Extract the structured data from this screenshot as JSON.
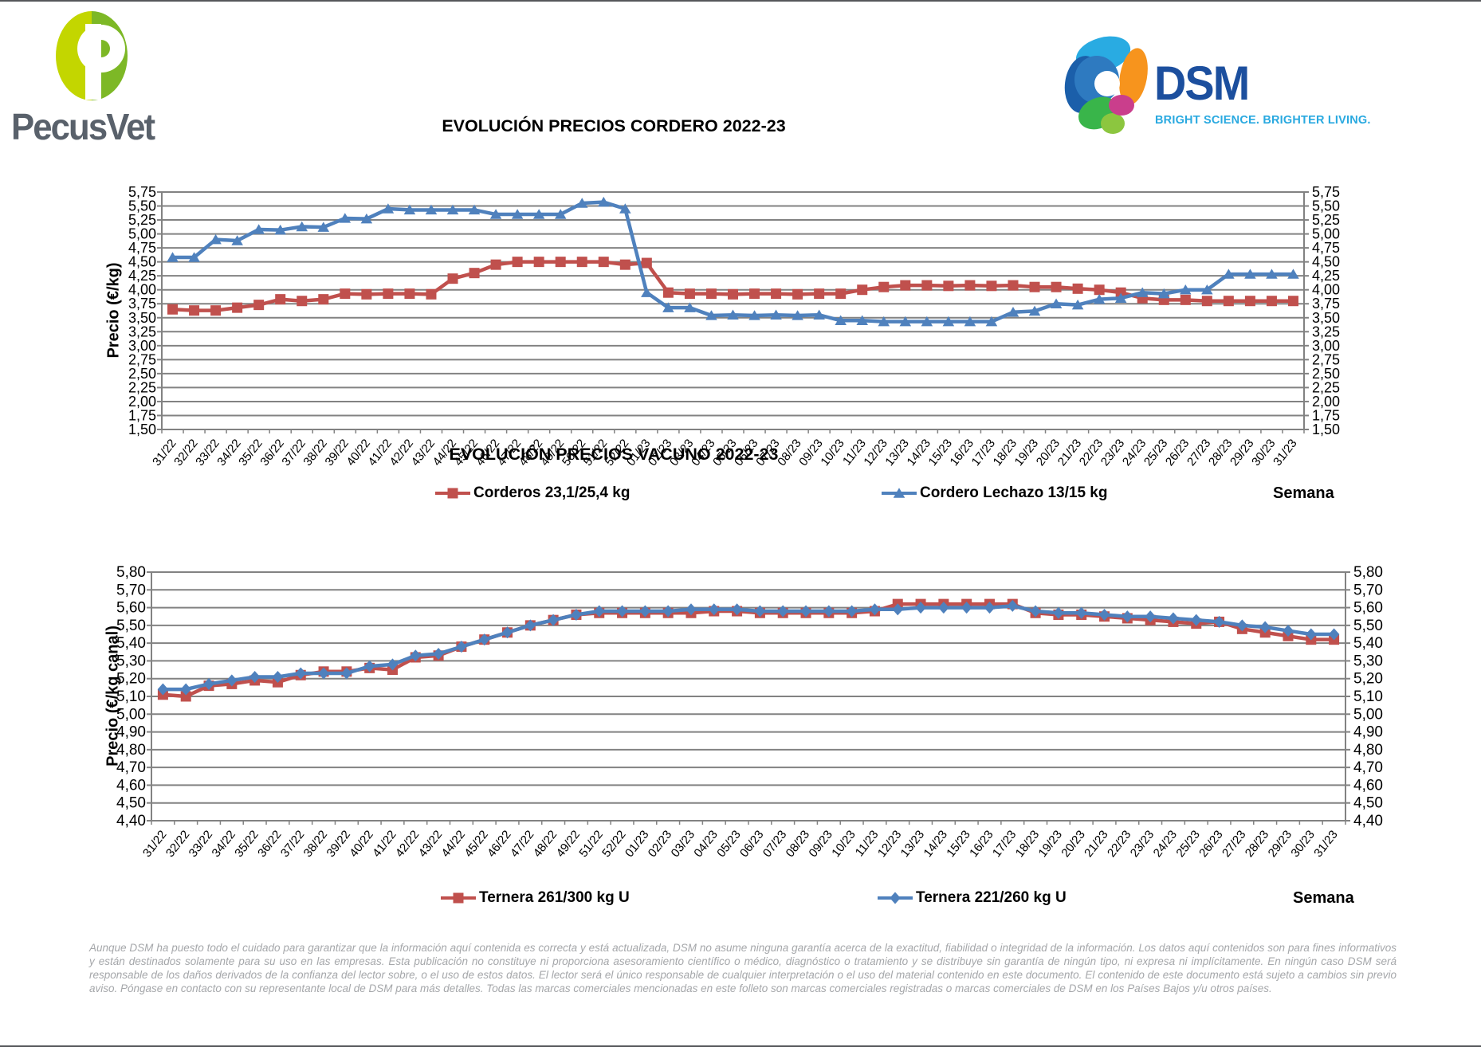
{
  "header": {
    "pecusvet": {
      "wordmark": "PecusVet"
    },
    "dsm": {
      "wordmark": "DSM",
      "tagline": "BRIGHT SCIENCE. BRIGHTER LIVING."
    }
  },
  "colors": {
    "series_red": "#C0504D",
    "series_blue": "#4F81BD",
    "grid": "#828282"
  },
  "chart_data": [
    {
      "type": "line",
      "title": "EVOLUCIÓN PRECIOS CORDERO 2022-23",
      "ylabel": "Precio (€/kg)",
      "xlabel": "Semana",
      "ylim": [
        1.5,
        5.75
      ],
      "ystep": 0.25,
      "grid": true,
      "legend_position": "bottom",
      "categories": [
        "31/22",
        "32/22",
        "33/22",
        "34/22",
        "35/22",
        "36/22",
        "37/22",
        "38/22",
        "39/22",
        "40/22",
        "41/22",
        "42/22",
        "43/22",
        "44/22",
        "45/22",
        "46/22",
        "47/22",
        "48/22",
        "49/22",
        "50/22",
        "51/22",
        "52/22",
        "01/23",
        "02/23",
        "03/23",
        "04/23",
        "05/23",
        "06/23",
        "07/23",
        "08/23",
        "09/23",
        "10/23",
        "11/23",
        "12/23",
        "13/23",
        "14/23",
        "15/23",
        "16/23",
        "17/23",
        "18/23",
        "19/23",
        "20/23",
        "21/23",
        "22/23",
        "23/23",
        "24/23",
        "25/23",
        "26/23",
        "27/23",
        "28/23",
        "29/23",
        "30/23",
        "31/23"
      ],
      "series": [
        {
          "name": "Corderos 23,1/25,4 kg",
          "color": "#C0504D",
          "marker": "square",
          "values": [
            3.65,
            3.63,
            3.63,
            3.68,
            3.73,
            3.83,
            3.8,
            3.83,
            3.93,
            3.92,
            3.93,
            3.93,
            3.92,
            4.2,
            4.3,
            4.45,
            4.5,
            4.5,
            4.5,
            4.5,
            4.5,
            4.45,
            4.48,
            3.95,
            3.93,
            3.93,
            3.92,
            3.93,
            3.93,
            3.92,
            3.93,
            3.93,
            4.0,
            4.05,
            4.08,
            4.08,
            4.07,
            4.08,
            4.07,
            4.08,
            4.05,
            4.05,
            4.02,
            4.0,
            3.95,
            3.85,
            3.82,
            3.82,
            3.8,
            3.8,
            3.8,
            3.8,
            3.8
          ]
        },
        {
          "name": "Cordero Lechazo 13/15 kg",
          "color": "#4F81BD",
          "marker": "triangle",
          "values": [
            4.58,
            4.58,
            4.9,
            4.88,
            5.08,
            5.07,
            5.13,
            5.12,
            5.28,
            5.27,
            5.45,
            5.43,
            5.43,
            5.43,
            5.43,
            5.35,
            5.35,
            5.35,
            5.35,
            5.55,
            5.57,
            5.45,
            3.95,
            3.68,
            3.68,
            3.54,
            3.55,
            3.54,
            3.55,
            3.54,
            3.55,
            3.45,
            3.45,
            3.43,
            3.43,
            3.43,
            3.43,
            3.43,
            3.43,
            3.6,
            3.62,
            3.75,
            3.73,
            3.83,
            3.85,
            3.95,
            3.93,
            4.0,
            4.0,
            4.28,
            4.28,
            4.28,
            4.28
          ]
        }
      ]
    },
    {
      "type": "line",
      "title": "EVOLUCIÓN PRECIOS VACUNO 2022-23",
      "ylabel": "Precio (€/kg canal)",
      "xlabel": "Semana",
      "ylim": [
        4.4,
        5.8
      ],
      "ystep": 0.1,
      "grid": true,
      "legend_position": "bottom",
      "categories": [
        "31/22",
        "32/22",
        "33/22",
        "34/22",
        "35/22",
        "36/22",
        "37/22",
        "38/22",
        "39/22",
        "40/22",
        "41/22",
        "42/22",
        "43/22",
        "44/22",
        "45/22",
        "46/22",
        "47/22",
        "48/22",
        "49/22",
        "51/22",
        "52/22",
        "01/23",
        "02/23",
        "03/23",
        "04/23",
        "05/23",
        "06/23",
        "07/23",
        "08/23",
        "09/23",
        "10/23",
        "11/23",
        "12/23",
        "13/23",
        "14/23",
        "15/23",
        "16/23",
        "17/23",
        "18/23",
        "19/23",
        "20/23",
        "21/23",
        "22/23",
        "23/23",
        "24/23",
        "25/23",
        "26/23",
        "27/23",
        "28/23",
        "29/23",
        "30/23",
        "31/23"
      ],
      "series": [
        {
          "name": "Ternera 261/300 kg U",
          "color": "#C0504D",
          "marker": "square",
          "values": [
            5.11,
            5.1,
            5.16,
            5.17,
            5.19,
            5.18,
            5.22,
            5.24,
            5.24,
            5.26,
            5.25,
            5.32,
            5.33,
            5.38,
            5.42,
            5.46,
            5.5,
            5.53,
            5.56,
            5.57,
            5.57,
            5.57,
            5.57,
            5.57,
            5.58,
            5.58,
            5.57,
            5.57,
            5.57,
            5.57,
            5.57,
            5.58,
            5.62,
            5.62,
            5.62,
            5.62,
            5.62,
            5.62,
            5.57,
            5.56,
            5.56,
            5.55,
            5.54,
            5.53,
            5.52,
            5.51,
            5.52,
            5.48,
            5.46,
            5.44,
            5.42,
            5.42
          ]
        },
        {
          "name": "Ternera 221/260 kg U",
          "color": "#4F81BD",
          "marker": "diamond",
          "values": [
            5.14,
            5.14,
            5.17,
            5.19,
            5.21,
            5.21,
            5.23,
            5.23,
            5.23,
            5.27,
            5.28,
            5.33,
            5.34,
            5.38,
            5.42,
            5.46,
            5.5,
            5.53,
            5.56,
            5.58,
            5.58,
            5.58,
            5.58,
            5.59,
            5.59,
            5.59,
            5.58,
            5.58,
            5.58,
            5.58,
            5.58,
            5.59,
            5.59,
            5.6,
            5.6,
            5.6,
            5.6,
            5.61,
            5.58,
            5.57,
            5.57,
            5.56,
            5.55,
            5.55,
            5.54,
            5.53,
            5.52,
            5.5,
            5.49,
            5.47,
            5.45,
            5.45
          ]
        }
      ]
    }
  ],
  "footer": {
    "disclaimer": "Aunque DSM ha puesto todo el cuidado para garantizar que la información aquí contenida es correcta y está actualizada, DSM no asume ninguna garantía acerca de la exactitud, fiabilidad o integridad de la información. Los datos aquí contenidos son para fines informativos y están destinados solamente para su uso en las empresas. Esta publicación no constituye ni proporciona asesoramiento científico o médico, diagnóstico o tratamiento y se distribuye sin garantía de ningún tipo, ni expresa ni implícitamente. En ningún caso DSM será responsable de los daños derivados de la confianza del lector sobre, o el uso de estos datos. El lector será el único responsable de cualquier interpretación o el uso del material contenido en este documento. El contenido de este documento está sujeto a cambios sin previo aviso. Póngase en contacto con su representante local de DSM para más detalles. Todas las marcas comerciales mencionadas en este folleto son marcas comerciales registradas o marcas comerciales de DSM en los Países Bajos y/u otros países."
  }
}
